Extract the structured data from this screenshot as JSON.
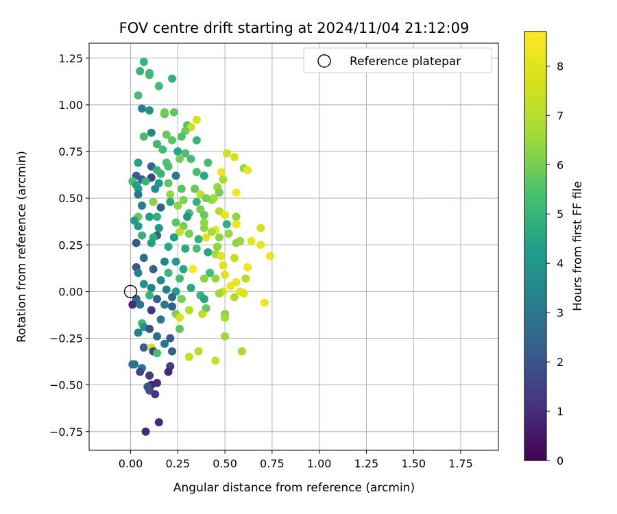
{
  "chart_data": {
    "type": "scatter",
    "title": "FOV centre drift starting at 2024/11/04 21:12:09",
    "xlabel": "Angular distance from reference (arcmin)",
    "ylabel": "Rotation from reference (arcmin)",
    "xlim": [
      -0.22,
      1.95
    ],
    "ylim": [
      -0.85,
      1.33
    ],
    "xticks": [
      "0.00",
      "0.25",
      "0.50",
      "0.75",
      "1.00",
      "1.25",
      "1.50",
      "1.75"
    ],
    "yticks": [
      "−0.75",
      "−0.50",
      "−0.25",
      "0.00",
      "0.25",
      "0.50",
      "0.75",
      "1.00",
      "1.25"
    ],
    "grid": true,
    "legend": {
      "position": "top-right",
      "entries": [
        "Reference platepar"
      ]
    },
    "reference_point": {
      "x": 0.0,
      "y": 0.0
    },
    "colorbar": {
      "label": "Hours from first FF file",
      "colormap": "viridis",
      "range": [
        0,
        8.7
      ],
      "ticks": [
        "0",
        "1",
        "2",
        "3",
        "4",
        "5",
        "6",
        "7",
        "8"
      ]
    },
    "points": [
      [
        0.07,
        1.23,
        5.0
      ],
      [
        0.05,
        1.18,
        5.0
      ],
      [
        0.1,
        1.17,
        5.1
      ],
      [
        0.1,
        1.16,
        5.2
      ],
      [
        0.22,
        1.14,
        4.9
      ],
      [
        0.15,
        1.1,
        5.2
      ],
      [
        0.04,
        1.05,
        5.3
      ],
      [
        0.06,
        0.98,
        3.3
      ],
      [
        0.1,
        0.97,
        3.8
      ],
      [
        0.18,
        0.95,
        5.8
      ],
      [
        0.18,
        0.96,
        5.9
      ],
      [
        0.23,
        0.96,
        5.7
      ],
      [
        0.35,
        0.92,
        7.7
      ],
      [
        0.3,
        0.89,
        5.5
      ],
      [
        0.32,
        0.88,
        7.5
      ],
      [
        0.29,
        0.86,
        5.9
      ],
      [
        0.11,
        0.85,
        3.5
      ],
      [
        0.07,
        0.83,
        5.3
      ],
      [
        0.19,
        0.84,
        5.8
      ],
      [
        0.27,
        0.83,
        5.5
      ],
      [
        0.22,
        0.81,
        5.6
      ],
      [
        0.35,
        0.81,
        5.0
      ],
      [
        0.14,
        0.79,
        5.1
      ],
      [
        0.17,
        0.76,
        5.3
      ],
      [
        0.25,
        0.75,
        4.5
      ],
      [
        0.29,
        0.74,
        5.4
      ],
      [
        0.51,
        0.74,
        7.5
      ],
      [
        0.55,
        0.72,
        7.7
      ],
      [
        0.32,
        0.71,
        5.3
      ],
      [
        0.26,
        0.71,
        6.0
      ],
      [
        0.19,
        0.69,
        5.4
      ],
      [
        0.41,
        0.69,
        5.3
      ],
      [
        0.04,
        0.69,
        4.4
      ],
      [
        0.2,
        0.67,
        5.4
      ],
      [
        0.11,
        0.67,
        2.5
      ],
      [
        0.6,
        0.66,
        6.3
      ],
      [
        0.62,
        0.65,
        8.2
      ],
      [
        0.14,
        0.65,
        5.0
      ],
      [
        0.16,
        0.63,
        5.0
      ],
      [
        0.35,
        0.64,
        5.3
      ],
      [
        0.48,
        0.64,
        8.3
      ],
      [
        0.39,
        0.62,
        4.6
      ],
      [
        0.03,
        0.62,
        2.3
      ],
      [
        0.24,
        0.62,
        3.0
      ],
      [
        0.11,
        0.61,
        1.5
      ],
      [
        0.06,
        0.6,
        2.2
      ],
      [
        0.49,
        0.6,
        6.6
      ],
      [
        0.01,
        0.59,
        5.4
      ],
      [
        0.03,
        0.57,
        4.4
      ],
      [
        0.2,
        0.58,
        5.7
      ],
      [
        0.15,
        0.58,
        4.2
      ],
      [
        0.08,
        0.59,
        5.0
      ],
      [
        0.04,
        0.55,
        4.3
      ],
      [
        0.46,
        0.56,
        6.4
      ],
      [
        0.27,
        0.55,
        5.6
      ],
      [
        0.34,
        0.55,
        5.8
      ],
      [
        0.13,
        0.55,
        3.7
      ],
      [
        0.47,
        0.53,
        6.0
      ],
      [
        0.37,
        0.52,
        7.2
      ],
      [
        0.21,
        0.52,
        6.4
      ],
      [
        0.04,
        0.52,
        3.0
      ],
      [
        0.56,
        0.53,
        8.4
      ],
      [
        0.43,
        0.49,
        6.5
      ],
      [
        0.44,
        0.5,
        6.5
      ],
      [
        0.4,
        0.5,
        6.0
      ],
      [
        0.28,
        0.49,
        6.1
      ],
      [
        0.12,
        0.48,
        6.2
      ],
      [
        0.35,
        0.48,
        4.9
      ],
      [
        0.21,
        0.48,
        4.6
      ],
      [
        0.06,
        0.46,
        3.3
      ],
      [
        0.25,
        0.46,
        6.3
      ],
      [
        0.37,
        0.44,
        6.0
      ],
      [
        0.16,
        0.45,
        2.3
      ],
      [
        0.31,
        0.42,
        5.3
      ],
      [
        0.47,
        0.43,
        7.0
      ],
      [
        0.39,
        0.41,
        5.8
      ],
      [
        0.5,
        0.41,
        8.1
      ],
      [
        0.56,
        0.4,
        6.3
      ],
      [
        0.3,
        0.4,
        4.1
      ],
      [
        0.14,
        0.4,
        4.8
      ],
      [
        0.1,
        0.4,
        4.2
      ],
      [
        0.04,
        0.4,
        5.8
      ],
      [
        0.02,
        0.38,
        4.2
      ],
      [
        0.39,
        0.37,
        6.3
      ],
      [
        0.24,
        0.37,
        5.6
      ],
      [
        0.51,
        0.36,
        4.8
      ],
      [
        0.56,
        0.36,
        8.3
      ],
      [
        0.28,
        0.35,
        6.0
      ],
      [
        0.04,
        0.35,
        4.3
      ],
      [
        0.39,
        0.34,
        6.3
      ],
      [
        0.15,
        0.34,
        4.2
      ],
      [
        0.45,
        0.33,
        8.2
      ],
      [
        0.43,
        0.32,
        6.6
      ],
      [
        0.26,
        0.32,
        7.2
      ],
      [
        0.31,
        0.31,
        6.0
      ],
      [
        0.52,
        0.31,
        6.4
      ],
      [
        0.69,
        0.34,
        7.6
      ],
      [
        0.14,
        0.3,
        2.4
      ],
      [
        0.06,
        0.3,
        4.9
      ],
      [
        0.4,
        0.29,
        8.0
      ],
      [
        0.36,
        0.28,
        4.9
      ],
      [
        0.23,
        0.29,
        4.3
      ],
      [
        0.47,
        0.29,
        6.3
      ],
      [
        0.12,
        0.29,
        4.8
      ],
      [
        0.03,
        0.26,
        2.0
      ],
      [
        0.56,
        0.26,
        6.3
      ],
      [
        0.58,
        0.27,
        6.4
      ],
      [
        0.64,
        0.27,
        8.1
      ],
      [
        0.69,
        0.25,
        8.0
      ],
      [
        0.11,
        0.26,
        4.3
      ],
      [
        0.46,
        0.24,
        6.3
      ],
      [
        0.2,
        0.24,
        4.6
      ],
      [
        0.29,
        0.23,
        4.6
      ],
      [
        0.35,
        0.23,
        5.4
      ],
      [
        0.74,
        0.19,
        8.3
      ],
      [
        0.41,
        0.21,
        4.5
      ],
      [
        0.45,
        0.2,
        6.6
      ],
      [
        0.48,
        0.19,
        8.1
      ],
      [
        0.55,
        0.18,
        7.2
      ],
      [
        0.07,
        0.18,
        2.6
      ],
      [
        0.18,
        0.16,
        3.5
      ],
      [
        0.24,
        0.16,
        4.3
      ],
      [
        0.03,
        0.13,
        2.0
      ],
      [
        0.62,
        0.13,
        8.3
      ],
      [
        0.33,
        0.12,
        8.6
      ],
      [
        0.49,
        0.14,
        7.9
      ],
      [
        0.28,
        0.12,
        4.5
      ],
      [
        0.12,
        0.12,
        2.4
      ],
      [
        0.04,
        0.1,
        3.4
      ],
      [
        0.42,
        0.1,
        5.3
      ],
      [
        0.2,
        0.1,
        5.1
      ],
      [
        0.5,
        0.09,
        7.9
      ],
      [
        0.39,
        0.07,
        6.2
      ],
      [
        0.45,
        0.07,
        6.4
      ],
      [
        0.61,
        0.07,
        7.0
      ],
      [
        0.26,
        0.07,
        5.3
      ],
      [
        0.16,
        0.06,
        3.6
      ],
      [
        0.56,
        0.05,
        8.3
      ],
      [
        0.07,
        0.04,
        4.0
      ],
      [
        0.53,
        0.03,
        8.2
      ],
      [
        0.32,
        0.02,
        4.6
      ],
      [
        0.11,
        0.02,
        3.4
      ],
      [
        0.19,
        0.01,
        3.3
      ],
      [
        0.24,
        0.0,
        4.3
      ],
      [
        0.58,
        0.0,
        8.2
      ],
      [
        0.49,
        0.0,
        7.7
      ],
      [
        0.47,
        -0.01,
        6.5
      ],
      [
        0.37,
        -0.02,
        5.0
      ],
      [
        0.1,
        -0.02,
        5.0
      ],
      [
        0.22,
        -0.03,
        2.5
      ],
      [
        0.55,
        -0.03,
        6.8
      ],
      [
        0.6,
        -0.01,
        7.8
      ],
      [
        0.03,
        -0.04,
        2.5
      ],
      [
        0.14,
        -0.04,
        2.2
      ],
      [
        0.27,
        -0.04,
        6.0
      ],
      [
        0.39,
        -0.04,
        4.5
      ],
      [
        0.71,
        -0.06,
        8.3
      ],
      [
        0.01,
        -0.07,
        1.0
      ],
      [
        0.18,
        -0.07,
        3.1
      ],
      [
        0.05,
        -0.07,
        2.9
      ],
      [
        0.22,
        -0.08,
        2.2
      ],
      [
        0.4,
        -0.09,
        5.8
      ],
      [
        0.31,
        -0.1,
        7.0
      ],
      [
        0.11,
        -0.1,
        1.2
      ],
      [
        0.24,
        -0.12,
        6.1
      ],
      [
        0.38,
        -0.12,
        7.1
      ],
      [
        0.5,
        -0.12,
        6.2
      ],
      [
        0.26,
        -0.14,
        7.7
      ],
      [
        0.5,
        -0.14,
        6.6
      ],
      [
        0.16,
        -0.15,
        3.0
      ],
      [
        0.06,
        -0.17,
        5.2
      ],
      [
        0.07,
        -0.19,
        4.0
      ],
      [
        0.26,
        -0.2,
        5.6
      ],
      [
        0.1,
        -0.2,
        1.8
      ],
      [
        0.04,
        -0.22,
        3.3
      ],
      [
        0.5,
        -0.24,
        6.5
      ],
      [
        0.21,
        -0.25,
        2.2
      ],
      [
        0.14,
        -0.24,
        2.7
      ],
      [
        0.18,
        -0.28,
        2.9
      ],
      [
        0.07,
        -0.3,
        2.3
      ],
      [
        0.11,
        -0.3,
        7.7
      ],
      [
        0.12,
        -0.32,
        1.6
      ],
      [
        0.14,
        -0.33,
        5.3
      ],
      [
        0.22,
        -0.32,
        2.4
      ],
      [
        0.36,
        -0.32,
        7.0
      ],
      [
        0.59,
        -0.32,
        6.7
      ],
      [
        0.31,
        -0.35,
        7.3
      ],
      [
        0.45,
        -0.37,
        7.4
      ],
      [
        0.02,
        -0.39,
        2.7
      ],
      [
        0.01,
        -0.39,
        2.9
      ],
      [
        0.21,
        -0.4,
        1.4
      ],
      [
        0.06,
        -0.41,
        3.0
      ],
      [
        0.05,
        -0.43,
        1.6
      ],
      [
        0.2,
        -0.43,
        0.9
      ],
      [
        0.1,
        -0.45,
        1.3
      ],
      [
        0.14,
        -0.49,
        1.0
      ],
      [
        0.11,
        -0.5,
        0.8
      ],
      [
        0.09,
        -0.51,
        1.9
      ],
      [
        0.1,
        -0.53,
        1.9
      ],
      [
        0.13,
        -0.55,
        1.2
      ],
      [
        0.15,
        -0.7,
        0.9
      ],
      [
        0.08,
        -0.75,
        0.9
      ]
    ]
  }
}
